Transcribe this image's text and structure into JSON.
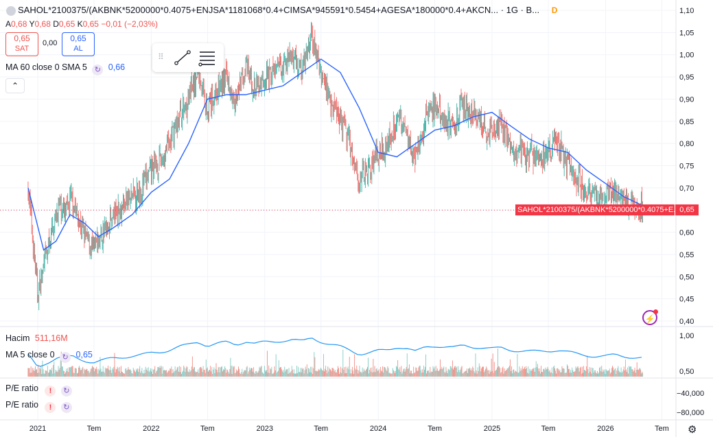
{
  "header": {
    "symbol": "SAHOL*2100375/(AKBNK*5200000*0.4075+ENJSA*1181068*0.4+CIMSA*945591*0.5454+AGESA*180000*0.4+AKCN... · 1G · B...",
    "data_badge": "D"
  },
  "ohlc": {
    "open_label": "A",
    "open": "0,68",
    "high_label": "Y",
    "high": "0,68",
    "low_label": "D",
    "low": "0,65",
    "close_label": "K",
    "close": "0,65",
    "change": "−0,01 (−2,03%)"
  },
  "trade": {
    "sell_price": "0,65",
    "sell_label": "SAT",
    "spread": "0,00",
    "buy_price": "0,65",
    "buy_label": "AL"
  },
  "indicators": {
    "ma_label": "MA 60 close 0 SMA 5",
    "ma_value": "0,66",
    "volume_label": "Hacim",
    "volume_value": "511,16M",
    "ma5_label": "MA 5 close 0",
    "ma5_value": "0,65",
    "pe1_label": "P/E ratio",
    "pe2_label": "P/E ratio"
  },
  "last_price_tag": {
    "label": "SAHOL*2100375/(AKBNK*5200000*0.4075+E...",
    "value": "0,65"
  },
  "colors": {
    "up": "#26a69a",
    "down": "#ef5350",
    "ma": "#2962ff",
    "volume_ma": "#2196f3",
    "grid": "#f0f3fa",
    "last_price": "#f23645"
  },
  "icons": {
    "collapse": "chevron-up-icon",
    "trendline_tool": "trendline-icon",
    "settings_tool": "lines-settings-icon",
    "alert": "flash-icon",
    "error": "exclamation-icon",
    "refresh": "refresh-icon",
    "chart_settings": "gear-icon"
  },
  "chart_data": {
    "type": "candlestick",
    "title": "SAHOL*2100375/(AKBNK*5200000*0.4075+ENJSA*1181068*0.4+CIMSA*945591*0.5454+AGESA*180000*0.4+AKCN...",
    "timeframe": "1G",
    "price_axis": {
      "ticks": [
        "1,10",
        "1,05",
        "1,00",
        "0,95",
        "0,90",
        "0,85",
        "0,80",
        "0,75",
        "0,70",
        "0,65",
        "0,60",
        "0,55",
        "0,50",
        "0,45",
        "0,40"
      ],
      "range": [
        0.39,
        1.11
      ]
    },
    "time_axis": {
      "ticks": [
        "2021",
        "Tem",
        "2022",
        "Tem",
        "2023",
        "Tem",
        "2024",
        "Tem",
        "2025",
        "Tem",
        "2026",
        "Tem"
      ]
    },
    "volume_ma_axis": {
      "ticks": [
        "1,00",
        "0,50"
      ]
    },
    "pe_axis": {
      "ticks": [
        "−40,000",
        "−80,000"
      ]
    },
    "price_path": [
      [
        "2020-12-01",
        0.7
      ],
      [
        "2020-12-20",
        0.55
      ],
      [
        "2021-01-01",
        0.46
      ],
      [
        "2021-01-20",
        0.52
      ],
      [
        "2021-02-15",
        0.6
      ],
      [
        "2021-03-10",
        0.66
      ],
      [
        "2021-04-01",
        0.64
      ],
      [
        "2021-04-20",
        0.68
      ],
      [
        "2021-05-15",
        0.62
      ],
      [
        "2021-06-10",
        0.58
      ],
      [
        "2021-07-01",
        0.56
      ],
      [
        "2021-08-01",
        0.6
      ],
      [
        "2021-09-01",
        0.64
      ],
      [
        "2021-10-01",
        0.66
      ],
      [
        "2021-11-01",
        0.68
      ],
      [
        "2021-12-01",
        0.7
      ],
      [
        "2022-01-01",
        0.74
      ],
      [
        "2022-02-01",
        0.76
      ],
      [
        "2022-03-01",
        0.8
      ],
      [
        "2022-04-01",
        0.86
      ],
      [
        "2022-05-01",
        0.9
      ],
      [
        "2022-06-01",
        0.96
      ],
      [
        "2022-07-01",
        0.88
      ],
      [
        "2022-08-01",
        0.92
      ],
      [
        "2022-09-01",
        0.95
      ],
      [
        "2022-10-01",
        0.9
      ],
      [
        "2022-11-01",
        0.97
      ],
      [
        "2022-12-01",
        0.92
      ],
      [
        "2023-01-01",
        0.95
      ],
      [
        "2023-02-01",
        0.96
      ],
      [
        "2023-03-01",
        0.98
      ],
      [
        "2023-04-01",
        1.0
      ],
      [
        "2023-05-01",
        0.96
      ],
      [
        "2023-06-01",
        1.04
      ],
      [
        "2023-07-01",
        0.96
      ],
      [
        "2023-08-01",
        0.9
      ],
      [
        "2023-09-01",
        0.86
      ],
      [
        "2023-10-01",
        0.8
      ],
      [
        "2023-11-01",
        0.72
      ],
      [
        "2023-12-01",
        0.74
      ],
      [
        "2024-01-01",
        0.78
      ],
      [
        "2024-02-01",
        0.8
      ],
      [
        "2024-03-01",
        0.86
      ],
      [
        "2024-04-01",
        0.83
      ],
      [
        "2024-05-01",
        0.76
      ],
      [
        "2024-06-01",
        0.86
      ],
      [
        "2024-07-01",
        0.88
      ],
      [
        "2024-08-01",
        0.86
      ],
      [
        "2024-09-01",
        0.84
      ],
      [
        "2024-10-01",
        0.89
      ],
      [
        "2024-11-01",
        0.86
      ],
      [
        "2024-12-01",
        0.84
      ],
      [
        "2025-01-01",
        0.82
      ],
      [
        "2025-02-01",
        0.84
      ],
      [
        "2025-03-01",
        0.8
      ],
      [
        "2025-04-01",
        0.78
      ],
      [
        "2025-05-01",
        0.77
      ],
      [
        "2025-06-01",
        0.77
      ],
      [
        "2025-07-01",
        0.78
      ],
      [
        "2025-08-01",
        0.8
      ],
      [
        "2025-09-01",
        0.76
      ],
      [
        "2025-10-01",
        0.72
      ],
      [
        "2025-11-01",
        0.69
      ],
      [
        "2025-12-01",
        0.68
      ],
      [
        "2026-01-01",
        0.68
      ],
      [
        "2026-02-01",
        0.7
      ],
      [
        "2026-03-01",
        0.67
      ],
      [
        "2026-04-01",
        0.66
      ],
      [
        "2026-05-01",
        0.65
      ]
    ],
    "ma60_path": [
      [
        "2020-12-01",
        0.7
      ],
      [
        "2021-01-20",
        0.56
      ],
      [
        "2021-03-01",
        0.58
      ],
      [
        "2021-04-15",
        0.64
      ],
      [
        "2021-06-01",
        0.62
      ],
      [
        "2021-07-15",
        0.59
      ],
      [
        "2021-09-01",
        0.61
      ],
      [
        "2021-11-01",
        0.64
      ],
      [
        "2022-01-01",
        0.69
      ],
      [
        "2022-03-01",
        0.72
      ],
      [
        "2022-05-01",
        0.8
      ],
      [
        "2022-07-01",
        0.9
      ],
      [
        "2022-09-01",
        0.91
      ],
      [
        "2022-11-01",
        0.91
      ],
      [
        "2023-01-01",
        0.92
      ],
      [
        "2023-03-01",
        0.93
      ],
      [
        "2023-05-01",
        0.96
      ],
      [
        "2023-07-01",
        0.99
      ],
      [
        "2023-09-01",
        0.96
      ],
      [
        "2023-11-01",
        0.88
      ],
      [
        "2024-01-01",
        0.78
      ],
      [
        "2024-03-01",
        0.77
      ],
      [
        "2024-05-01",
        0.8
      ],
      [
        "2024-07-01",
        0.83
      ],
      [
        "2024-09-01",
        0.84
      ],
      [
        "2024-11-01",
        0.86
      ],
      [
        "2025-01-01",
        0.87
      ],
      [
        "2025-03-01",
        0.84
      ],
      [
        "2025-05-01",
        0.81
      ],
      [
        "2025-07-01",
        0.79
      ],
      [
        "2025-09-01",
        0.78
      ],
      [
        "2025-11-01",
        0.74
      ],
      [
        "2026-01-01",
        0.71
      ],
      [
        "2026-03-01",
        0.68
      ],
      [
        "2026-05-01",
        0.66
      ]
    ],
    "last_price": 0.65,
    "grid": true,
    "legend_position": "top-left"
  }
}
